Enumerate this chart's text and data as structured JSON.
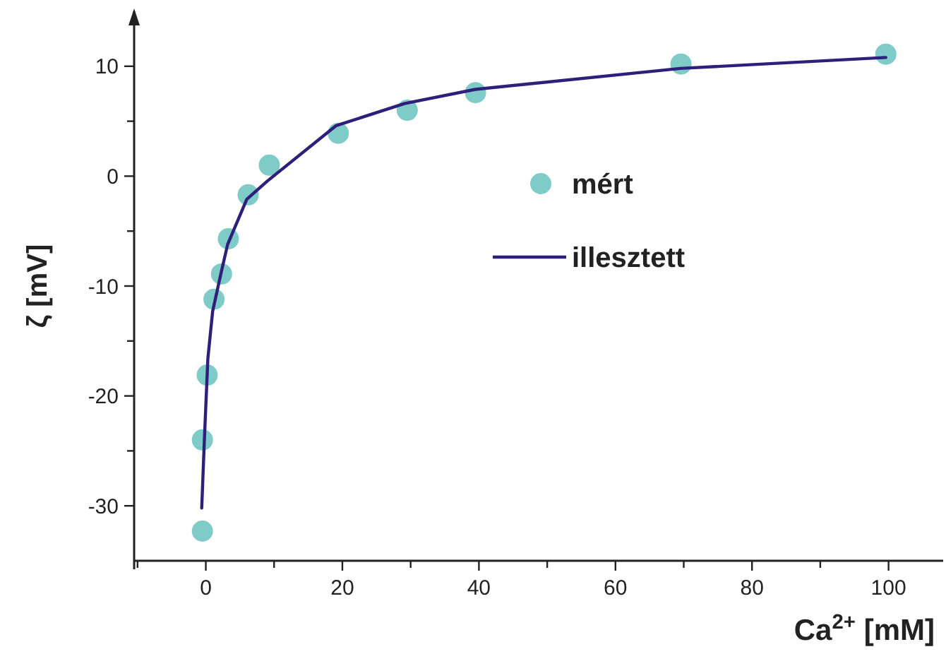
{
  "chart_data": {
    "type": "scatter",
    "xlabel": "Ca$^{2+}$ [mM]",
    "ylabel": "ζ [mV]",
    "xlim": [
      -10.5,
      108
    ],
    "ylim": [
      -35,
      15
    ],
    "xticks": [
      {
        "value": -10,
        "label": null
      },
      0,
      {
        "value": 10,
        "label": null
      },
      20,
      {
        "value": 30,
        "label": null
      },
      40,
      {
        "value": 50,
        "label": null
      },
      60,
      {
        "value": 70,
        "label": null
      },
      80,
      {
        "value": 90,
        "label": null
      },
      100
    ],
    "yticks": [
      -30,
      {
        "value": -25,
        "label": null
      },
      -20,
      {
        "value": -15,
        "label": null
      },
      -10,
      {
        "value": -5,
        "label": null
      },
      0,
      {
        "value": 5,
        "label": null
      },
      10
    ],
    "grid": false,
    "legend": "right",
    "marker": "circle",
    "series": [
      {
        "name": "mért",
        "color": "#7ecbc8",
        "x": [
          -0.5,
          -0.5,
          0.2,
          1.2,
          2.3,
          3.3,
          6.2,
          9.3,
          19.4,
          29.5,
          39.5,
          69.6,
          99.6
        ],
        "values": [
          -32.3,
          -24,
          -18.1,
          -11.2,
          -8.9,
          -5.7,
          -1.7,
          1.0,
          3.9,
          6.0,
          7.6,
          10.2,
          11.1
        ]
      },
      {
        "name": "illesztett",
        "type": "line",
        "color": "#2e1f7a",
        "marker": "none",
        "line_style": "solid",
        "x": [
          -0.6,
          -0.2,
          0.3,
          1.0,
          2.2,
          3.2,
          6.0,
          9.1,
          19.1,
          29.1,
          39.5,
          69.5,
          99.6
        ],
        "values": [
          -30.2,
          -23.8,
          -16.6,
          -12.3,
          -8.9,
          -6.2,
          -2.1,
          -0.4,
          4.6,
          6.6,
          7.9,
          9.8,
          10.8
        ]
      }
    ]
  }
}
